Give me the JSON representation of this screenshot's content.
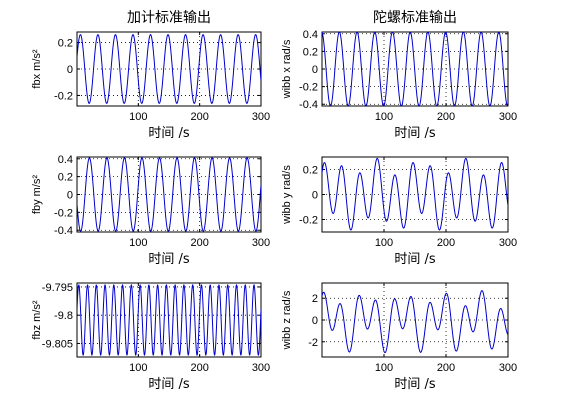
{
  "figure": {
    "titles": [
      "加计标准输出",
      "陀螺标准输出"
    ]
  },
  "chart_data": [
    {
      "type": "line",
      "title": "加计标准输出",
      "xlabel": "时间 /s",
      "ylabel": "fbx m/s²",
      "xlim": [
        0,
        300
      ],
      "ylim": [
        -0.28,
        0.28
      ],
      "xticks": [
        100,
        200,
        300
      ],
      "yticks": [
        0.2,
        0,
        -0.2
      ],
      "ytick_labels": [
        "0.2",
        "0",
        "-0.2"
      ],
      "grid": true,
      "series": [
        {
          "wave": "sine",
          "offset": 0,
          "amplitude": 0.26,
          "cycles": 10.5,
          "phase": 0.35
        }
      ]
    },
    {
      "type": "line",
      "title": "陀螺标准输出",
      "xlabel": "时间 /s",
      "ylabel": "wibb x rad/s",
      "xlim": [
        0,
        300
      ],
      "ylim": [
        -0.42,
        0.42
      ],
      "xticks": [
        100,
        200,
        300
      ],
      "yticks": [
        0.4,
        0.2,
        0,
        -0.2,
        -0.4
      ],
      "ytick_labels": [
        "0.4",
        "0.2",
        "0",
        "-0.2",
        "-0.4"
      ],
      "grid": true,
      "series": [
        {
          "wave": "sine",
          "offset": 0,
          "amplitude": 0.42,
          "cycles": 10.5,
          "phase": 1.7
        }
      ]
    },
    {
      "type": "line",
      "title": "",
      "xlabel": "时间 /s",
      "ylabel": "fby m/s²",
      "xlim": [
        0,
        300
      ],
      "ylim": [
        -0.42,
        0.42
      ],
      "xticks": [
        100,
        200,
        300
      ],
      "yticks": [
        0.4,
        0.2,
        0,
        -0.2,
        -0.4
      ],
      "ytick_labels": [
        "0.4",
        "0.2",
        "0",
        "-0.2",
        "-0.4"
      ],
      "grid": true,
      "series": [
        {
          "wave": "sine",
          "offset": 0,
          "amplitude": 0.41,
          "cycles": 10.5,
          "phase": 3.4
        }
      ]
    },
    {
      "type": "line",
      "title": "",
      "xlabel": "时间 /s",
      "ylabel": "wibb y rad/s",
      "xlim": [
        0,
        300
      ],
      "ylim": [
        -0.3,
        0.3
      ],
      "xticks": [
        100,
        200,
        300
      ],
      "yticks": [
        0.2,
        0,
        -0.2
      ],
      "ytick_labels": [
        "0.2",
        "0",
        "-0.2"
      ],
      "grid": true,
      "series": [
        {
          "wave": "twotone",
          "offset": 0,
          "amplitude": 0.22,
          "cycles": 10.5,
          "phase": 0.8,
          "amplitude2": 0.07,
          "cycles2": 4.2,
          "phase2": 0.2
        }
      ]
    },
    {
      "type": "line",
      "title": "",
      "xlabel": "时间 /s",
      "ylabel": "fbz m/s²",
      "xlim": [
        0,
        300
      ],
      "ylim": [
        -9.8074,
        -9.7943
      ],
      "xticks": [
        100,
        200,
        300
      ],
      "yticks": [
        -9.795,
        -9.8,
        -9.805
      ],
      "ytick_labels": [
        "-9.795",
        "-9.8",
        "-9.805"
      ],
      "grid": true,
      "series": [
        {
          "wave": "sine",
          "offset": -9.80085,
          "amplitude": 0.0062,
          "cycles": 21,
          "phase": 0.3
        }
      ]
    },
    {
      "type": "line",
      "title": "",
      "xlabel": "时间 /s",
      "ylabel": "wibb z rad/s",
      "xlim": [
        0,
        300
      ],
      "ylim": [
        -3.4,
        3.4
      ],
      "xticks": [
        100,
        200,
        300
      ],
      "yticks": [
        2,
        0,
        -2
      ],
      "ytick_labels": [
        "2",
        "0",
        "-2"
      ],
      "grid": true,
      "series": [
        {
          "wave": "twotone",
          "offset": 0,
          "amplitude": 1.9,
          "cycles": 10.5,
          "phase": 1.2,
          "amplitude2": 1.1,
          "cycles2": 5.0,
          "phase2": 0.4
        }
      ]
    }
  ]
}
